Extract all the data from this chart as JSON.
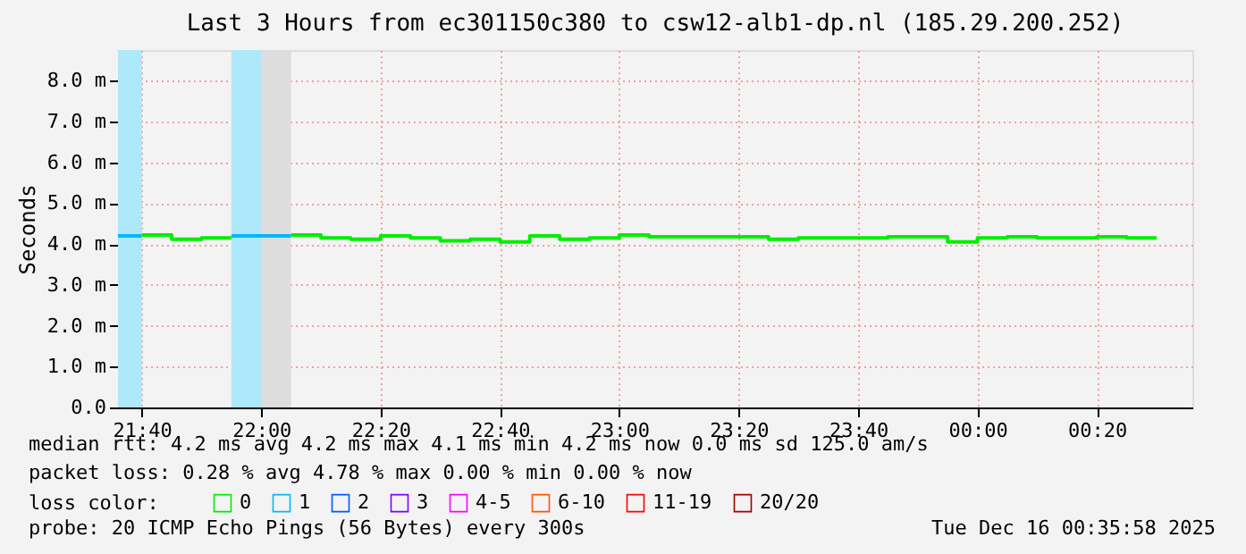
{
  "chart_data": {
    "type": "step",
    "title": "Last 3 Hours from ec301150c380 to csw12-alb1-dp.nl (185.29.200.252)",
    "ylabel": "Seconds",
    "legend_title": "loss color:",
    "legend": "bottom",
    "grid": true,
    "xlim": [
      "2025-12-15T21:36",
      "2025-12-16T00:36"
    ],
    "xticks": [
      {
        "value": "2025-12-15T21:40",
        "label": "21:40"
      },
      {
        "value": "2025-12-15T22:00",
        "label": "22:00"
      },
      {
        "value": "2025-12-15T22:20",
        "label": "22:20"
      },
      {
        "value": "2025-12-15T22:40",
        "label": "22:40"
      },
      {
        "value": "2025-12-15T23:00",
        "label": "23:00"
      },
      {
        "value": "2025-12-15T23:20",
        "label": "23:20"
      },
      {
        "value": "2025-12-15T23:40",
        "label": "23:40"
      },
      {
        "value": "2025-12-16T00:00",
        "label": "00:00"
      },
      {
        "value": "2025-12-16T00:20",
        "label": "00:20"
      }
    ],
    "ylim": [
      0,
      8.75
    ],
    "yticks": [
      {
        "value": 0,
        "label": "0.0"
      },
      {
        "value": 1,
        "label": "1.0 m"
      },
      {
        "value": 2,
        "label": "2.0 m"
      },
      {
        "value": 3,
        "label": "3.0 m"
      },
      {
        "value": 4,
        "label": "4.0 m"
      },
      {
        "value": 5,
        "label": "5.0 m"
      },
      {
        "value": 6,
        "label": "6.0 m"
      },
      {
        "value": 7,
        "label": "7.0 m"
      },
      {
        "value": 8,
        "label": "8.0 m"
      }
    ],
    "series": [
      {
        "name": "0",
        "color": "#00ee00",
        "x": [
          "2025-12-15T21:40",
          "2025-12-15T21:45",
          "2025-12-15T21:50",
          "2025-12-15T21:55",
          "2025-12-15T22:00",
          "2025-12-15T22:05",
          "2025-12-15T22:10",
          "2025-12-15T22:15",
          "2025-12-15T22:20",
          "2025-12-15T22:25",
          "2025-12-15T22:30",
          "2025-12-15T22:35",
          "2025-12-15T22:40",
          "2025-12-15T22:45",
          "2025-12-15T22:50",
          "2025-12-15T22:55",
          "2025-12-15T23:00",
          "2025-12-15T23:05",
          "2025-12-15T23:10",
          "2025-12-15T23:15",
          "2025-12-15T23:20",
          "2025-12-15T23:25",
          "2025-12-15T23:30",
          "2025-12-15T23:35",
          "2025-12-15T23:40",
          "2025-12-15T23:45",
          "2025-12-15T23:50",
          "2025-12-15T23:55",
          "2025-12-16T00:00",
          "2025-12-16T00:05",
          "2025-12-16T00:10",
          "2025-12-16T00:15",
          "2025-12-16T00:20",
          "2025-12-16T00:25",
          "2025-12-16T00:30"
        ],
        "values": [
          4.22,
          4.12,
          4.15,
          4.15,
          null,
          4.22,
          4.15,
          4.12,
          4.2,
          4.15,
          4.08,
          4.12,
          4.05,
          4.2,
          4.12,
          4.15,
          4.22,
          4.18,
          4.18,
          4.18,
          4.18,
          4.12,
          4.15,
          4.15,
          4.15,
          4.18,
          4.18,
          4.05,
          4.15,
          4.18,
          4.15,
          4.15,
          4.18,
          4.15,
          4.15
        ]
      },
      {
        "name": "1",
        "color": "#00b8ff",
        "x": [
          "2025-12-15T21:36",
          "2025-12-15T21:40",
          "2025-12-15T21:45",
          "2025-12-15T21:55",
          "2025-12-15T22:00",
          "2025-12-15T22:05"
        ],
        "values": [
          4.2,
          4.2,
          null,
          4.2,
          4.2,
          4.2
        ]
      },
      {
        "name": "2",
        "color": "#0059ff"
      },
      {
        "name": "3",
        "color": "#7e00ff"
      },
      {
        "name": "4-5",
        "color": "#ff00ff"
      },
      {
        "name": "6-10",
        "color": "#ff5500"
      },
      {
        "name": "11-19",
        "color": "#ff0000"
      },
      {
        "name": "20/20",
        "color": "#a00000"
      }
    ],
    "bands": [
      {
        "axis": "x",
        "from": "2025-12-15T21:36",
        "to": "2025-12-15T21:40",
        "color": "#aee8fb"
      },
      {
        "axis": "x",
        "from": "2025-12-15T21:55",
        "to": "2025-12-15T22:00",
        "color": "#aee8fb"
      },
      {
        "axis": "x",
        "from": "2025-12-15T22:00",
        "to": "2025-12-15T22:05",
        "color": "#dddddd"
      }
    ],
    "annotations": [
      "median rtt:  4.2 ms avg  4.2 ms max  4.1 ms min  4.2 ms now  0.0 ms sd  125.0   am/s",
      "packet loss: 0.28 % avg  4.78 % max  0.00 % min  0.00 % now",
      "probe:        20 ICMP Echo Pings (56 Bytes) every 300s",
      "Tue Dec 16 00:35:58 2025"
    ]
  }
}
